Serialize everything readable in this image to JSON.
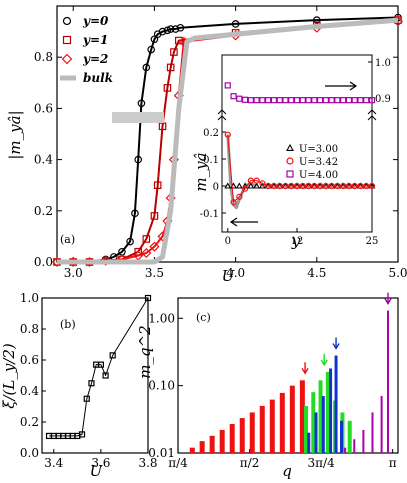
{
  "chart_data": [
    {
      "panel": "(a)",
      "type": "line",
      "xlabel": "U",
      "ylabel": "|m_yâ|",
      "xlim": [
        2.9,
        5.0
      ],
      "ylim": [
        0.0,
        1.0
      ],
      "xticks": [
        "3.0",
        "3.5",
        "4.0",
        "4.5",
        "5.0"
      ],
      "yticks": [
        "0.0",
        "0.2",
        "0.4",
        "0.6",
        "0.8"
      ],
      "legend": [
        "y=0",
        "y=1",
        "y=2",
        "bulk"
      ],
      "legend_position": "top-left",
      "colors": {
        "y0": "#000000",
        "y1": "#bb0000",
        "y2": "#ee1111",
        "bulk": "#bbbbbb"
      },
      "series": [
        {
          "name": "y=0",
          "marker": "circle",
          "x": [
            2.9,
            3.0,
            3.1,
            3.2,
            3.25,
            3.3,
            3.35,
            3.38,
            3.4,
            3.42,
            3.45,
            3.48,
            3.5,
            3.52,
            3.55,
            3.58,
            3.6,
            3.63,
            3.66,
            4.0,
            4.5,
            5.0
          ],
          "y": [
            0.0,
            0.0,
            0.0,
            0.01,
            0.02,
            0.04,
            0.08,
            0.19,
            0.4,
            0.62,
            0.76,
            0.83,
            0.87,
            0.89,
            0.9,
            0.905,
            0.91,
            0.91,
            0.915,
            0.93,
            0.945,
            0.955
          ]
        },
        {
          "name": "y=1",
          "marker": "square",
          "x": [
            2.9,
            3.0,
            3.1,
            3.2,
            3.3,
            3.4,
            3.45,
            3.5,
            3.52,
            3.55,
            3.58,
            3.6,
            3.62,
            3.65,
            4.0,
            4.5,
            5.0
          ],
          "y": [
            0.0,
            0.0,
            0.0,
            0.005,
            0.01,
            0.04,
            0.09,
            0.18,
            0.3,
            0.53,
            0.68,
            0.76,
            0.82,
            0.865,
            0.895,
            0.925,
            0.945
          ]
        },
        {
          "name": "y=2",
          "marker": "diamond",
          "x": [
            2.9,
            3.0,
            3.1,
            3.2,
            3.3,
            3.4,
            3.45,
            3.5,
            3.55,
            3.58,
            3.6,
            3.62,
            3.65,
            3.68,
            4.0,
            4.5,
            5.0
          ],
          "y": [
            0.0,
            0.0,
            0.0,
            0.005,
            0.01,
            0.025,
            0.035,
            0.06,
            0.1,
            0.16,
            0.25,
            0.4,
            0.65,
            0.86,
            0.885,
            0.915,
            0.94
          ]
        },
        {
          "name": "bulk",
          "marker": "none",
          "x": [
            2.9,
            3.5,
            3.55,
            3.6,
            3.65,
            3.7,
            3.75,
            4.0,
            4.5,
            5.0
          ],
          "y": [
            0.0,
            0.0,
            0.02,
            0.2,
            0.6,
            0.86,
            0.875,
            0.89,
            0.92,
            0.945
          ]
        }
      ]
    },
    {
      "panel": "(a) inset",
      "type": "line",
      "xlabel": "y",
      "ylabel": "m_yâ",
      "xlim": [
        -1,
        25
      ],
      "xticks": [
        "0",
        "12",
        "25"
      ],
      "yticks_left": [
        "-0.1",
        "0",
        "0.1",
        "0.2"
      ],
      "yticks_right": [
        "0.9",
        "1.0"
      ],
      "legend": [
        "U=3.00",
        "U=3.42",
        "U=4.00"
      ],
      "series": [
        {
          "name": "U=3.00",
          "marker": "triangle",
          "axis": "left",
          "x": [
            0,
            1,
            2,
            3,
            4,
            5,
            6,
            7,
            8,
            9,
            10,
            11,
            12,
            13,
            14,
            15,
            16,
            17,
            18,
            19,
            20,
            21,
            22,
            23,
            24,
            25
          ],
          "y": [
            0.0,
            0.0,
            0.0,
            0.0,
            0.0,
            0.0,
            0.0,
            0.0,
            0.0,
            0.0,
            0.0,
            0.0,
            0.0,
            0.0,
            0.0,
            0.0,
            0.0,
            0.0,
            0.0,
            0.0,
            0.0,
            0.0,
            0.0,
            0.0,
            0.0,
            0.0
          ]
        },
        {
          "name": "U=3.42",
          "marker": "circle",
          "axis": "left",
          "x": [
            0,
            1,
            2,
            3,
            4,
            5,
            6,
            7,
            8,
            9,
            10,
            11,
            12,
            13,
            14,
            15,
            16,
            17,
            18,
            19,
            20,
            21,
            22,
            23,
            24,
            25
          ],
          "y": [
            0.19,
            -0.06,
            -0.04,
            -0.01,
            0.02,
            0.02,
            0.01,
            0.0,
            0.0,
            0.0,
            0.0,
            0.0,
            0.0,
            0.0,
            0.0,
            0.0,
            0.0,
            0.0,
            0.0,
            0.0,
            0.0,
            0.0,
            0.0,
            0.0,
            0.0,
            0.0
          ]
        },
        {
          "name": "U=4.00",
          "marker": "square",
          "axis": "right",
          "x": [
            0,
            1,
            2,
            3,
            4,
            5,
            6,
            7,
            8,
            9,
            10,
            11,
            12,
            13,
            14,
            15,
            16,
            17,
            18,
            19,
            20,
            21,
            22,
            23,
            24,
            25
          ],
          "y": [
            0.935,
            0.905,
            0.898,
            0.895,
            0.894,
            0.894,
            0.894,
            0.894,
            0.894,
            0.894,
            0.894,
            0.894,
            0.894,
            0.894,
            0.894,
            0.894,
            0.894,
            0.894,
            0.894,
            0.894,
            0.894,
            0.894,
            0.894,
            0.894,
            0.894,
            0.894
          ]
        },
        {
          "name": "grey",
          "marker": "none",
          "axis": "left",
          "x": [
            0,
            0.5,
            1,
            1.5,
            2,
            3,
            4,
            5
          ],
          "y": [
            0.19,
            0.0,
            -0.07,
            -0.08,
            -0.05,
            0.0,
            0.01,
            0.0
          ]
        }
      ]
    },
    {
      "panel": "(b)",
      "type": "line",
      "xlabel": "U",
      "ylabel": "ξ/(L_y/2)",
      "xlim": [
        3.35,
        3.8
      ],
      "ylim": [
        0.0,
        1.0
      ],
      "xticks": [
        "3.4",
        "3.6",
        "3.8"
      ],
      "yticks": [
        "0.0",
        "0.2",
        "0.4",
        "0.6",
        "0.8",
        "1.0"
      ],
      "series": [
        {
          "name": "ξ",
          "marker": "square",
          "x": [
            3.38,
            3.4,
            3.42,
            3.44,
            3.46,
            3.48,
            3.5,
            3.52,
            3.54,
            3.56,
            3.58,
            3.6,
            3.62,
            3.65,
            3.8
          ],
          "y": [
            0.11,
            0.11,
            0.11,
            0.11,
            0.11,
            0.11,
            0.11,
            0.12,
            0.35,
            0.45,
            0.57,
            0.57,
            0.5,
            0.63,
            1.0
          ]
        }
      ]
    },
    {
      "panel": "(c)",
      "type": "bar",
      "xlabel": "q",
      "ylabel": "m_q^2",
      "scale": "log",
      "ylim": [
        0.01,
        2.0
      ],
      "xlim": [
        0.785,
        3.2
      ],
      "xticks": [
        "π/4",
        "π/2",
        "3π/4",
        "π"
      ],
      "yticks": [
        "0.01",
        "0.10",
        "1.00"
      ],
      "colors": {
        "red": "#ee1111",
        "green": "#22dd22",
        "blue": "#1133cc",
        "purple": "#aa00aa"
      },
      "series": [
        {
          "name": "red",
          "color": "#ee1111",
          "arrow_at": 2.18,
          "x": [
            0.942,
            1.05,
            1.16,
            1.27,
            1.38,
            1.49,
            1.6,
            1.71,
            1.82,
            1.93,
            2.04,
            2.15
          ],
          "y": [
            0.012,
            0.015,
            0.018,
            0.022,
            0.027,
            0.033,
            0.04,
            0.05,
            0.062,
            0.078,
            0.1,
            0.12
          ]
        },
        {
          "name": "green",
          "color": "#22dd22",
          "arrow_at": 2.39,
          "x": [
            2.19,
            2.27,
            2.35,
            2.43,
            2.51,
            2.59,
            2.67
          ],
          "y": [
            0.05,
            0.08,
            0.12,
            0.16,
            0.06,
            0.04,
            0.03
          ]
        },
        {
          "name": "blue",
          "color": "#1133cc",
          "arrow_at": 2.52,
          "x": [
            2.22,
            2.3,
            2.38,
            2.46,
            2.52,
            2.58
          ],
          "y": [
            0.02,
            0.04,
            0.07,
            0.18,
            0.28,
            0.03
          ]
        },
        {
          "name": "purple",
          "color": "#aa00aa",
          "arrow_at": 3.09,
          "x": [
            2.62,
            2.72,
            2.82,
            2.92,
            3.02,
            3.09
          ],
          "y": [
            0.012,
            0.016,
            0.022,
            0.04,
            0.07,
            1.3
          ]
        }
      ]
    }
  ]
}
